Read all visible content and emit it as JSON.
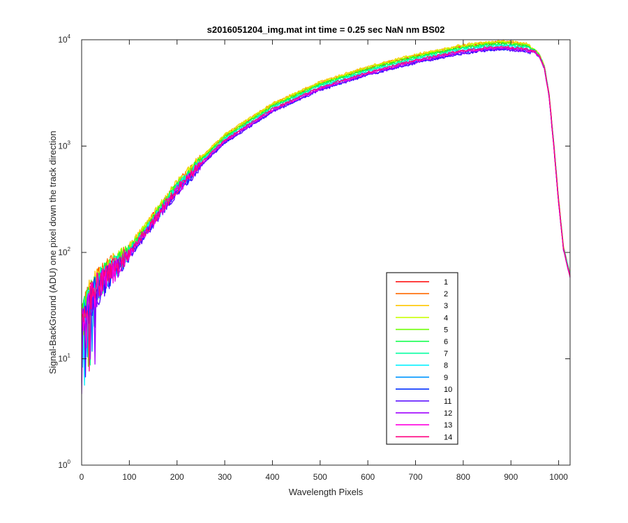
{
  "chart_data": {
    "type": "line",
    "title": "s2016051204_img.mat int time = 0.25 sec  NaN nm BS02",
    "xlabel": "Wavelength Pixels",
    "ylabel": "Signal-BackGround (ADU) one pixel down the track direction",
    "xlim": [
      0,
      1024
    ],
    "ylim": [
      1,
      10000
    ],
    "yscale": "log",
    "xticks": [
      0,
      100,
      200,
      300,
      400,
      500,
      600,
      700,
      800,
      900,
      1000
    ],
    "xtick_labels": [
      "0",
      "100",
      "200",
      "300",
      "400",
      "500",
      "600",
      "700",
      "800",
      "900",
      "1000"
    ],
    "yticks": [
      {
        "value": 1,
        "base": "10",
        "exp": "0"
      },
      {
        "value": 10,
        "base": "10",
        "exp": "1"
      },
      {
        "value": 100,
        "base": "10",
        "exp": "2"
      },
      {
        "value": 1000,
        "base": "10",
        "exp": "3"
      },
      {
        "value": 10000,
        "base": "10",
        "exp": "4"
      }
    ],
    "legend_position": "lower-right",
    "curve_shape": {
      "x": [
        0,
        10,
        20,
        30,
        50,
        100,
        150,
        200,
        250,
        300,
        400,
        500,
        600,
        700,
        800,
        850,
        880,
        900,
        930,
        950,
        960,
        970,
        980,
        990,
        1000,
        1010,
        1024
      ],
      "y": [
        22,
        30,
        40,
        48,
        60,
        100,
        200,
        400,
        700,
        1150,
        2250,
        3600,
        5000,
        6500,
        8000,
        8500,
        8700,
        8600,
        8300,
        7800,
        7000,
        5500,
        3000,
        1000,
        300,
        110,
        60
      ]
    },
    "series": [
      {
        "name": "1",
        "color": "#ff0000",
        "scale": 1.08
      },
      {
        "name": "2",
        "color": "#ff6a00",
        "scale": 1.1
      },
      {
        "name": "3",
        "color": "#ffc800",
        "scale": 1.12
      },
      {
        "name": "4",
        "color": "#c8ff00",
        "scale": 1.1
      },
      {
        "name": "5",
        "color": "#6aff00",
        "scale": 1.07
      },
      {
        "name": "6",
        "color": "#00ff40",
        "scale": 1.05
      },
      {
        "name": "7",
        "color": "#00ffa0",
        "scale": 1.03
      },
      {
        "name": "8",
        "color": "#00f0ff",
        "scale": 1.0
      },
      {
        "name": "9",
        "color": "#0096ff",
        "scale": 0.97
      },
      {
        "name": "10",
        "color": "#0030ff",
        "scale": 0.94
      },
      {
        "name": "11",
        "color": "#5000ff",
        "scale": 0.93
      },
      {
        "name": "12",
        "color": "#a000ff",
        "scale": 0.95
      },
      {
        "name": "13",
        "color": "#ff00e0",
        "scale": 0.97
      },
      {
        "name": "14",
        "color": "#ff0080",
        "scale": 0.99
      }
    ]
  }
}
